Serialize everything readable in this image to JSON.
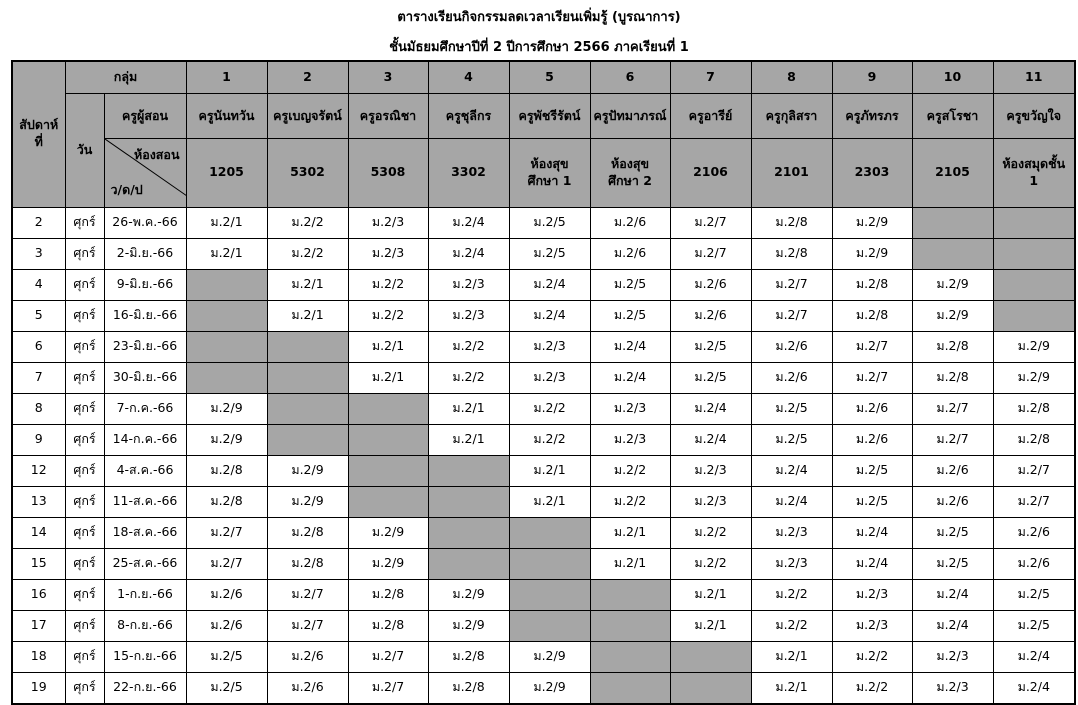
{
  "header": {
    "title": "ตารางเรียนกิจกรรมลดเวลาเรียนเพิ่มรู้ (บูรณาการ)",
    "subtitle": "ชั้นมัธยมศึกษาปีที่  2  ปีการศึกษา 2566  ภาคเรียนที่ 1"
  },
  "table": {
    "week_header": "สัปดาห์\nที่",
    "group_header": "กลุ่ม",
    "day_header": "วัน",
    "teacher_header": "ครูผู้สอน",
    "room_header": "ห้องสอน",
    "date_header": "ว/ด/ป",
    "groups": [
      "1",
      "2",
      "3",
      "4",
      "5",
      "6",
      "7",
      "8",
      "9",
      "10",
      "11"
    ],
    "teachers": [
      "ครูนันทวัน",
      "ครูเบญจรัตน์",
      "ครูอรณิชา",
      "ครูชุลีกร",
      "ครูพัชรีรัตน์",
      "ครูปัทมาภรณ์",
      "ครูอารีย์",
      "ครูกุลิสรา",
      "ครูภัทรภร",
      "ครูสโรชา",
      "ครูขวัญใจ"
    ],
    "rooms": [
      "1205",
      "5302",
      "5308",
      "3302",
      "ห้องสุข\nศึกษา 1",
      "ห้องสุข\nศึกษา 2",
      "2106",
      "2101",
      "2303",
      "2105",
      "ห้องสมุดชั้น\n1"
    ],
    "rows": [
      {
        "week": "2",
        "day": "ศุกร์",
        "date": "26-พ.ค.-66",
        "cells": [
          "ม.2/1",
          "ม.2/2",
          "ม.2/3",
          "ม.2/4",
          "ม.2/5",
          "ม.2/6",
          "ม.2/7",
          "ม.2/8",
          "ม.2/9",
          null,
          null
        ]
      },
      {
        "week": "3",
        "day": "ศุกร์",
        "date": "2-มิ.ย.-66",
        "cells": [
          "ม.2/1",
          "ม.2/2",
          "ม.2/3",
          "ม.2/4",
          "ม.2/5",
          "ม.2/6",
          "ม.2/7",
          "ม.2/8",
          "ม.2/9",
          null,
          null
        ]
      },
      {
        "week": "4",
        "day": "ศุกร์",
        "date": "9-มิ.ย.-66",
        "cells": [
          null,
          "ม.2/1",
          "ม.2/2",
          "ม.2/3",
          "ม.2/4",
          "ม.2/5",
          "ม.2/6",
          "ม.2/7",
          "ม.2/8",
          "ม.2/9",
          null
        ]
      },
      {
        "week": "5",
        "day": "ศุกร์",
        "date": "16-มิ.ย.-66",
        "cells": [
          null,
          "ม.2/1",
          "ม.2/2",
          "ม.2/3",
          "ม.2/4",
          "ม.2/5",
          "ม.2/6",
          "ม.2/7",
          "ม.2/8",
          "ม.2/9",
          null
        ]
      },
      {
        "week": "6",
        "day": "ศุกร์",
        "date": "23-มิ.ย.-66",
        "cells": [
          null,
          null,
          "ม.2/1",
          "ม.2/2",
          "ม.2/3",
          "ม.2/4",
          "ม.2/5",
          "ม.2/6",
          "ม.2/7",
          "ม.2/8",
          "ม.2/9"
        ]
      },
      {
        "week": "7",
        "day": "ศุกร์",
        "date": "30-มิ.ย.-66",
        "cells": [
          null,
          null,
          "ม.2/1",
          "ม.2/2",
          "ม.2/3",
          "ม.2/4",
          "ม.2/5",
          "ม.2/6",
          "ม.2/7",
          "ม.2/8",
          "ม.2/9"
        ]
      },
      {
        "week": "8",
        "day": "ศุกร์",
        "date": "7-ก.ค.-66",
        "cells": [
          "ม.2/9",
          null,
          null,
          "ม.2/1",
          "ม.2/2",
          "ม.2/3",
          "ม.2/4",
          "ม.2/5",
          "ม.2/6",
          "ม.2/7",
          "ม.2/8"
        ]
      },
      {
        "week": "9",
        "day": "ศุกร์",
        "date": "14-ก.ค.-66",
        "cells": [
          "ม.2/9",
          null,
          null,
          "ม.2/1",
          "ม.2/2",
          "ม.2/3",
          "ม.2/4",
          "ม.2/5",
          "ม.2/6",
          "ม.2/7",
          "ม.2/8"
        ]
      },
      {
        "week": "12",
        "day": "ศุกร์",
        "date": "4-ส.ค.-66",
        "cells": [
          "ม.2/8",
          "ม.2/9",
          null,
          null,
          "ม.2/1",
          "ม.2/2",
          "ม.2/3",
          "ม.2/4",
          "ม.2/5",
          "ม.2/6",
          "ม.2/7"
        ]
      },
      {
        "week": "13",
        "day": "ศุกร์",
        "date": "11-ส.ค.-66",
        "cells": [
          "ม.2/8",
          "ม.2/9",
          null,
          null,
          "ม.2/1",
          "ม.2/2",
          "ม.2/3",
          "ม.2/4",
          "ม.2/5",
          "ม.2/6",
          "ม.2/7"
        ]
      },
      {
        "week": "14",
        "day": "ศุกร์",
        "date": "18-ส.ค.-66",
        "cells": [
          "ม.2/7",
          "ม.2/8",
          "ม.2/9",
          null,
          null,
          "ม.2/1",
          "ม.2/2",
          "ม.2/3",
          "ม.2/4",
          "ม.2/5",
          "ม.2/6"
        ]
      },
      {
        "week": "15",
        "day": "ศุกร์",
        "date": "25-ส.ค.-66",
        "cells": [
          "ม.2/7",
          "ม.2/8",
          "ม.2/9",
          null,
          null,
          "ม.2/1",
          "ม.2/2",
          "ม.2/3",
          "ม.2/4",
          "ม.2/5",
          "ม.2/6"
        ]
      },
      {
        "week": "16",
        "day": "ศุกร์",
        "date": "1-ก.ย.-66",
        "cells": [
          "ม.2/6",
          "ม.2/7",
          "ม.2/8",
          "ม.2/9",
          null,
          null,
          "ม.2/1",
          "ม.2/2",
          "ม.2/3",
          "ม.2/4",
          "ม.2/5"
        ]
      },
      {
        "week": "17",
        "day": "ศุกร์",
        "date": "8-ก.ย.-66",
        "cells": [
          "ม.2/6",
          "ม.2/7",
          "ม.2/8",
          "ม.2/9",
          null,
          null,
          "ม.2/1",
          "ม.2/2",
          "ม.2/3",
          "ม.2/4",
          "ม.2/5"
        ]
      },
      {
        "week": "18",
        "day": "ศุกร์",
        "date": "15-ก.ย.-66",
        "cells": [
          "ม.2/5",
          "ม.2/6",
          "ม.2/7",
          "ม.2/8",
          "ม.2/9",
          null,
          null,
          "ม.2/1",
          "ม.2/2",
          "ม.2/3",
          "ม.2/4"
        ]
      },
      {
        "week": "19",
        "day": "ศุกร์",
        "date": "22-ก.ย.-66",
        "cells": [
          "ม.2/5",
          "ม.2/6",
          "ม.2/7",
          "ม.2/8",
          "ม.2/9",
          null,
          null,
          "ม.2/1",
          "ม.2/2",
          "ม.2/3",
          "ม.2/4"
        ]
      }
    ]
  }
}
